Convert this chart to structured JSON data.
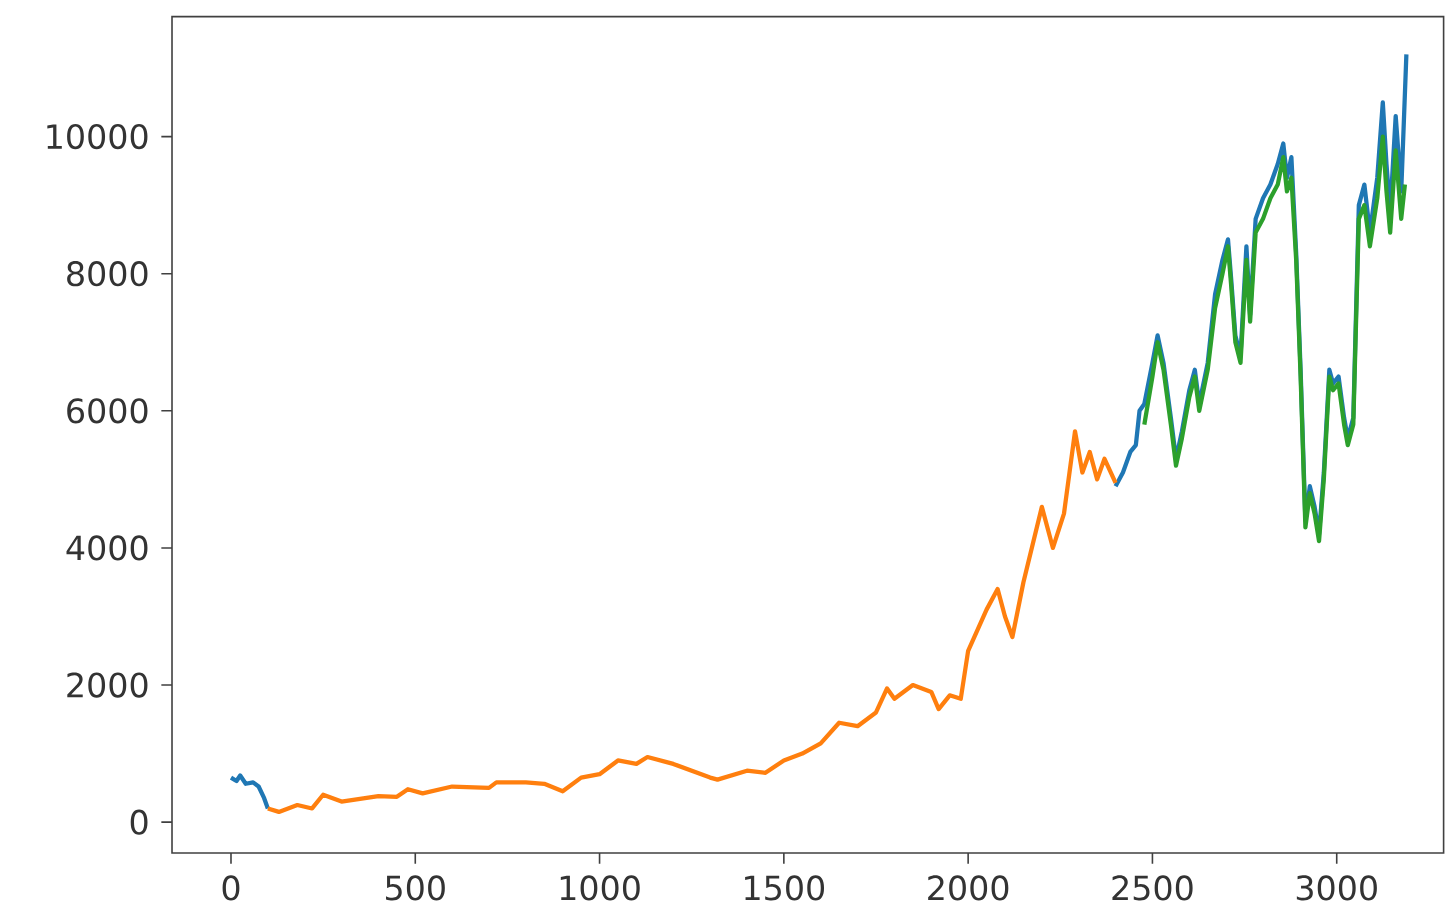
{
  "chart_data": {
    "type": "line",
    "xlim": [
      -160,
      3290
    ],
    "ylim": [
      -450,
      11750
    ],
    "xticks": [
      0,
      500,
      1000,
      1500,
      2000,
      2500,
      3000
    ],
    "yticks": [
      0,
      2000,
      4000,
      6000,
      8000,
      10000
    ],
    "grid": false,
    "series": [
      {
        "color": "#1f77b4",
        "x": [
          0,
          15,
          25,
          40,
          60,
          75,
          90,
          100,
          1200,
          2400,
          2420,
          2440,
          2455,
          2465,
          2478,
          2500,
          2514,
          2530,
          2550,
          2564,
          2580,
          2600,
          2615,
          2627,
          2650,
          2670,
          2690,
          2705,
          2714,
          2725,
          2739,
          2755,
          2765,
          2780,
          2800,
          2820,
          2840,
          2855,
          2865,
          2877,
          2890,
          2902,
          2915,
          2927,
          2940,
          2952,
          2965,
          2980,
          2990,
          3005,
          3020,
          3030,
          3045,
          3060,
          3075,
          3090,
          3110,
          3125,
          3135,
          3145,
          3160,
          3175,
          3189
        ],
        "values": [
          650,
          600,
          680,
          560,
          580,
          520,
          350,
          200,
          null,
          4900,
          5100,
          5400,
          5500,
          6000,
          6100,
          6700,
          7100,
          6700,
          5900,
          5300,
          5700,
          6300,
          6600,
          6100,
          6700,
          7700,
          8200,
          8500,
          7900,
          7100,
          6800,
          8400,
          7400,
          8800,
          9100,
          9300,
          9600,
          9900,
          9400,
          9700,
          8300,
          6600,
          4400,
          4900,
          4600,
          4200,
          5100,
          6600,
          6400,
          6500,
          5900,
          5600,
          5900,
          9000,
          9300,
          8600,
          9400,
          10500,
          9600,
          8900,
          10300,
          9200,
          11200
        ]
      },
      {
        "color": "#ff7f0e",
        "x": [
          100,
          130,
          180,
          220,
          250,
          300,
          400,
          450,
          480,
          520,
          600,
          700,
          720,
          800,
          850,
          900,
          950,
          1000,
          1050,
          1100,
          1130,
          1200,
          1300,
          1320,
          1400,
          1450,
          1500,
          1550,
          1600,
          1650,
          1700,
          1750,
          1780,
          1800,
          1850,
          1900,
          1920,
          1950,
          1980,
          2000,
          2050,
          2080,
          2100,
          2120,
          2150,
          2200,
          2230,
          2260,
          2290,
          2310,
          2330,
          2350,
          2370,
          2400
        ],
        "values": [
          200,
          150,
          250,
          200,
          400,
          300,
          380,
          370,
          480,
          420,
          520,
          500,
          580,
          580,
          560,
          450,
          650,
          700,
          900,
          850,
          950,
          850,
          650,
          620,
          750,
          720,
          900,
          1000,
          1150,
          1450,
          1400,
          1600,
          1950,
          1800,
          2000,
          1900,
          1650,
          1850,
          1800,
          2500,
          3100,
          3400,
          3000,
          2700,
          3500,
          4600,
          4000,
          4500,
          5700,
          5100,
          5400,
          5000,
          5300,
          4950
        ]
      },
      {
        "color": "#2ca02c",
        "x": [
          2478,
          2500,
          2514,
          2530,
          2550,
          2564,
          2580,
          2600,
          2615,
          2627,
          2650,
          2670,
          2690,
          2705,
          2714,
          2725,
          2739,
          2755,
          2765,
          2780,
          2800,
          2820,
          2840,
          2855,
          2865,
          2877,
          2890,
          2902,
          2915,
          2927,
          2940,
          2952,
          2965,
          2980,
          2990,
          3005,
          3020,
          3030,
          3045,
          3060,
          3075,
          3090,
          3110,
          3125,
          3135,
          3145,
          3160,
          3175,
          3185
        ],
        "values": [
          5800,
          6500,
          7000,
          6600,
          5800,
          5200,
          5600,
          6200,
          6500,
          6000,
          6600,
          7500,
          8000,
          8400,
          7800,
          7000,
          6700,
          8200,
          7300,
          8600,
          8800,
          9100,
          9300,
          9700,
          9200,
          9400,
          8200,
          6500,
          4300,
          4800,
          4500,
          4100,
          5000,
          6500,
          6300,
          6400,
          5800,
          5500,
          5800,
          8800,
          9000,
          8400,
          9100,
          10000,
          9200,
          8600,
          9800,
          8800,
          9300
        ]
      }
    ]
  }
}
